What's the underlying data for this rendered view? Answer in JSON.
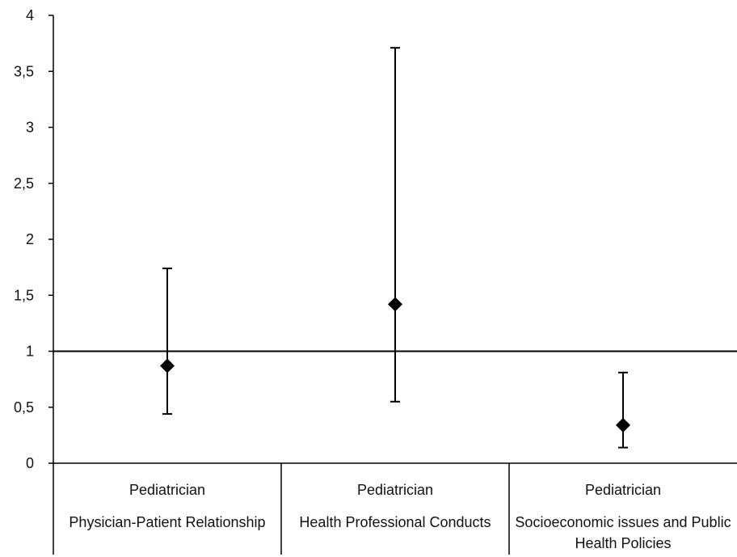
{
  "chart_data": {
    "type": "scatter",
    "title": "",
    "xlabel": "",
    "ylabel": "",
    "ylim": [
      0,
      4
    ],
    "yticks": [
      0,
      0.5,
      1,
      1.5,
      2,
      2.5,
      3,
      3.5,
      4
    ],
    "ytick_labels": [
      "0",
      "0,5",
      "1",
      "1,5",
      "2",
      "2,5",
      "3",
      "3,5",
      "4"
    ],
    "reference_line": 1,
    "grid": false,
    "legend": "none",
    "marker": "diamond",
    "color": "#000000",
    "categories": [
      {
        "line1": "Pediatrician",
        "line2": "Physician-Patient Relationship"
      },
      {
        "line1": "Pediatrician",
        "line2": "Health Professional Conducts"
      },
      {
        "line1": "Pediatrician",
        "line2": "Socioeconomic issues and Public Health Policies"
      }
    ],
    "points": [
      {
        "value": 0.87,
        "lower": 0.44,
        "upper": 1.74
      },
      {
        "value": 1.42,
        "lower": 0.55,
        "upper": 3.71
      },
      {
        "value": 0.34,
        "lower": 0.14,
        "upper": 0.81
      }
    ]
  }
}
